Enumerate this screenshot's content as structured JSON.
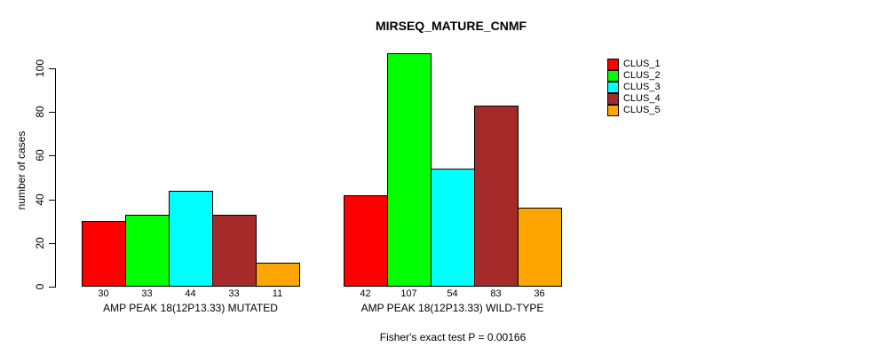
{
  "chart_data": {
    "type": "bar",
    "title": "MIRSEQ_MATURE_CNMF",
    "ylabel": "number of cases",
    "xlabel": "",
    "ylim": [
      0,
      110
    ],
    "yticks": [
      0,
      20,
      40,
      60,
      80,
      100
    ],
    "grid": false,
    "legend_position": "right",
    "annotation": "Fisher's exact test P = 0.00166",
    "categories": [
      "AMP PEAK 18(12P13.33) MUTATED",
      "AMP PEAK 18(12P13.33) WILD-TYPE"
    ],
    "series": [
      {
        "name": "CLUS_1",
        "color": "#ff0000",
        "values": [
          30,
          42
        ]
      },
      {
        "name": "CLUS_2",
        "color": "#00ff00",
        "values": [
          33,
          107
        ]
      },
      {
        "name": "CLUS_3",
        "color": "#00ffff",
        "values": [
          44,
          54
        ]
      },
      {
        "name": "CLUS_4",
        "color": "#a52a2a",
        "values": [
          33,
          83
        ]
      },
      {
        "name": "CLUS_5",
        "color": "#ffa500",
        "values": [
          11,
          36
        ]
      }
    ]
  }
}
